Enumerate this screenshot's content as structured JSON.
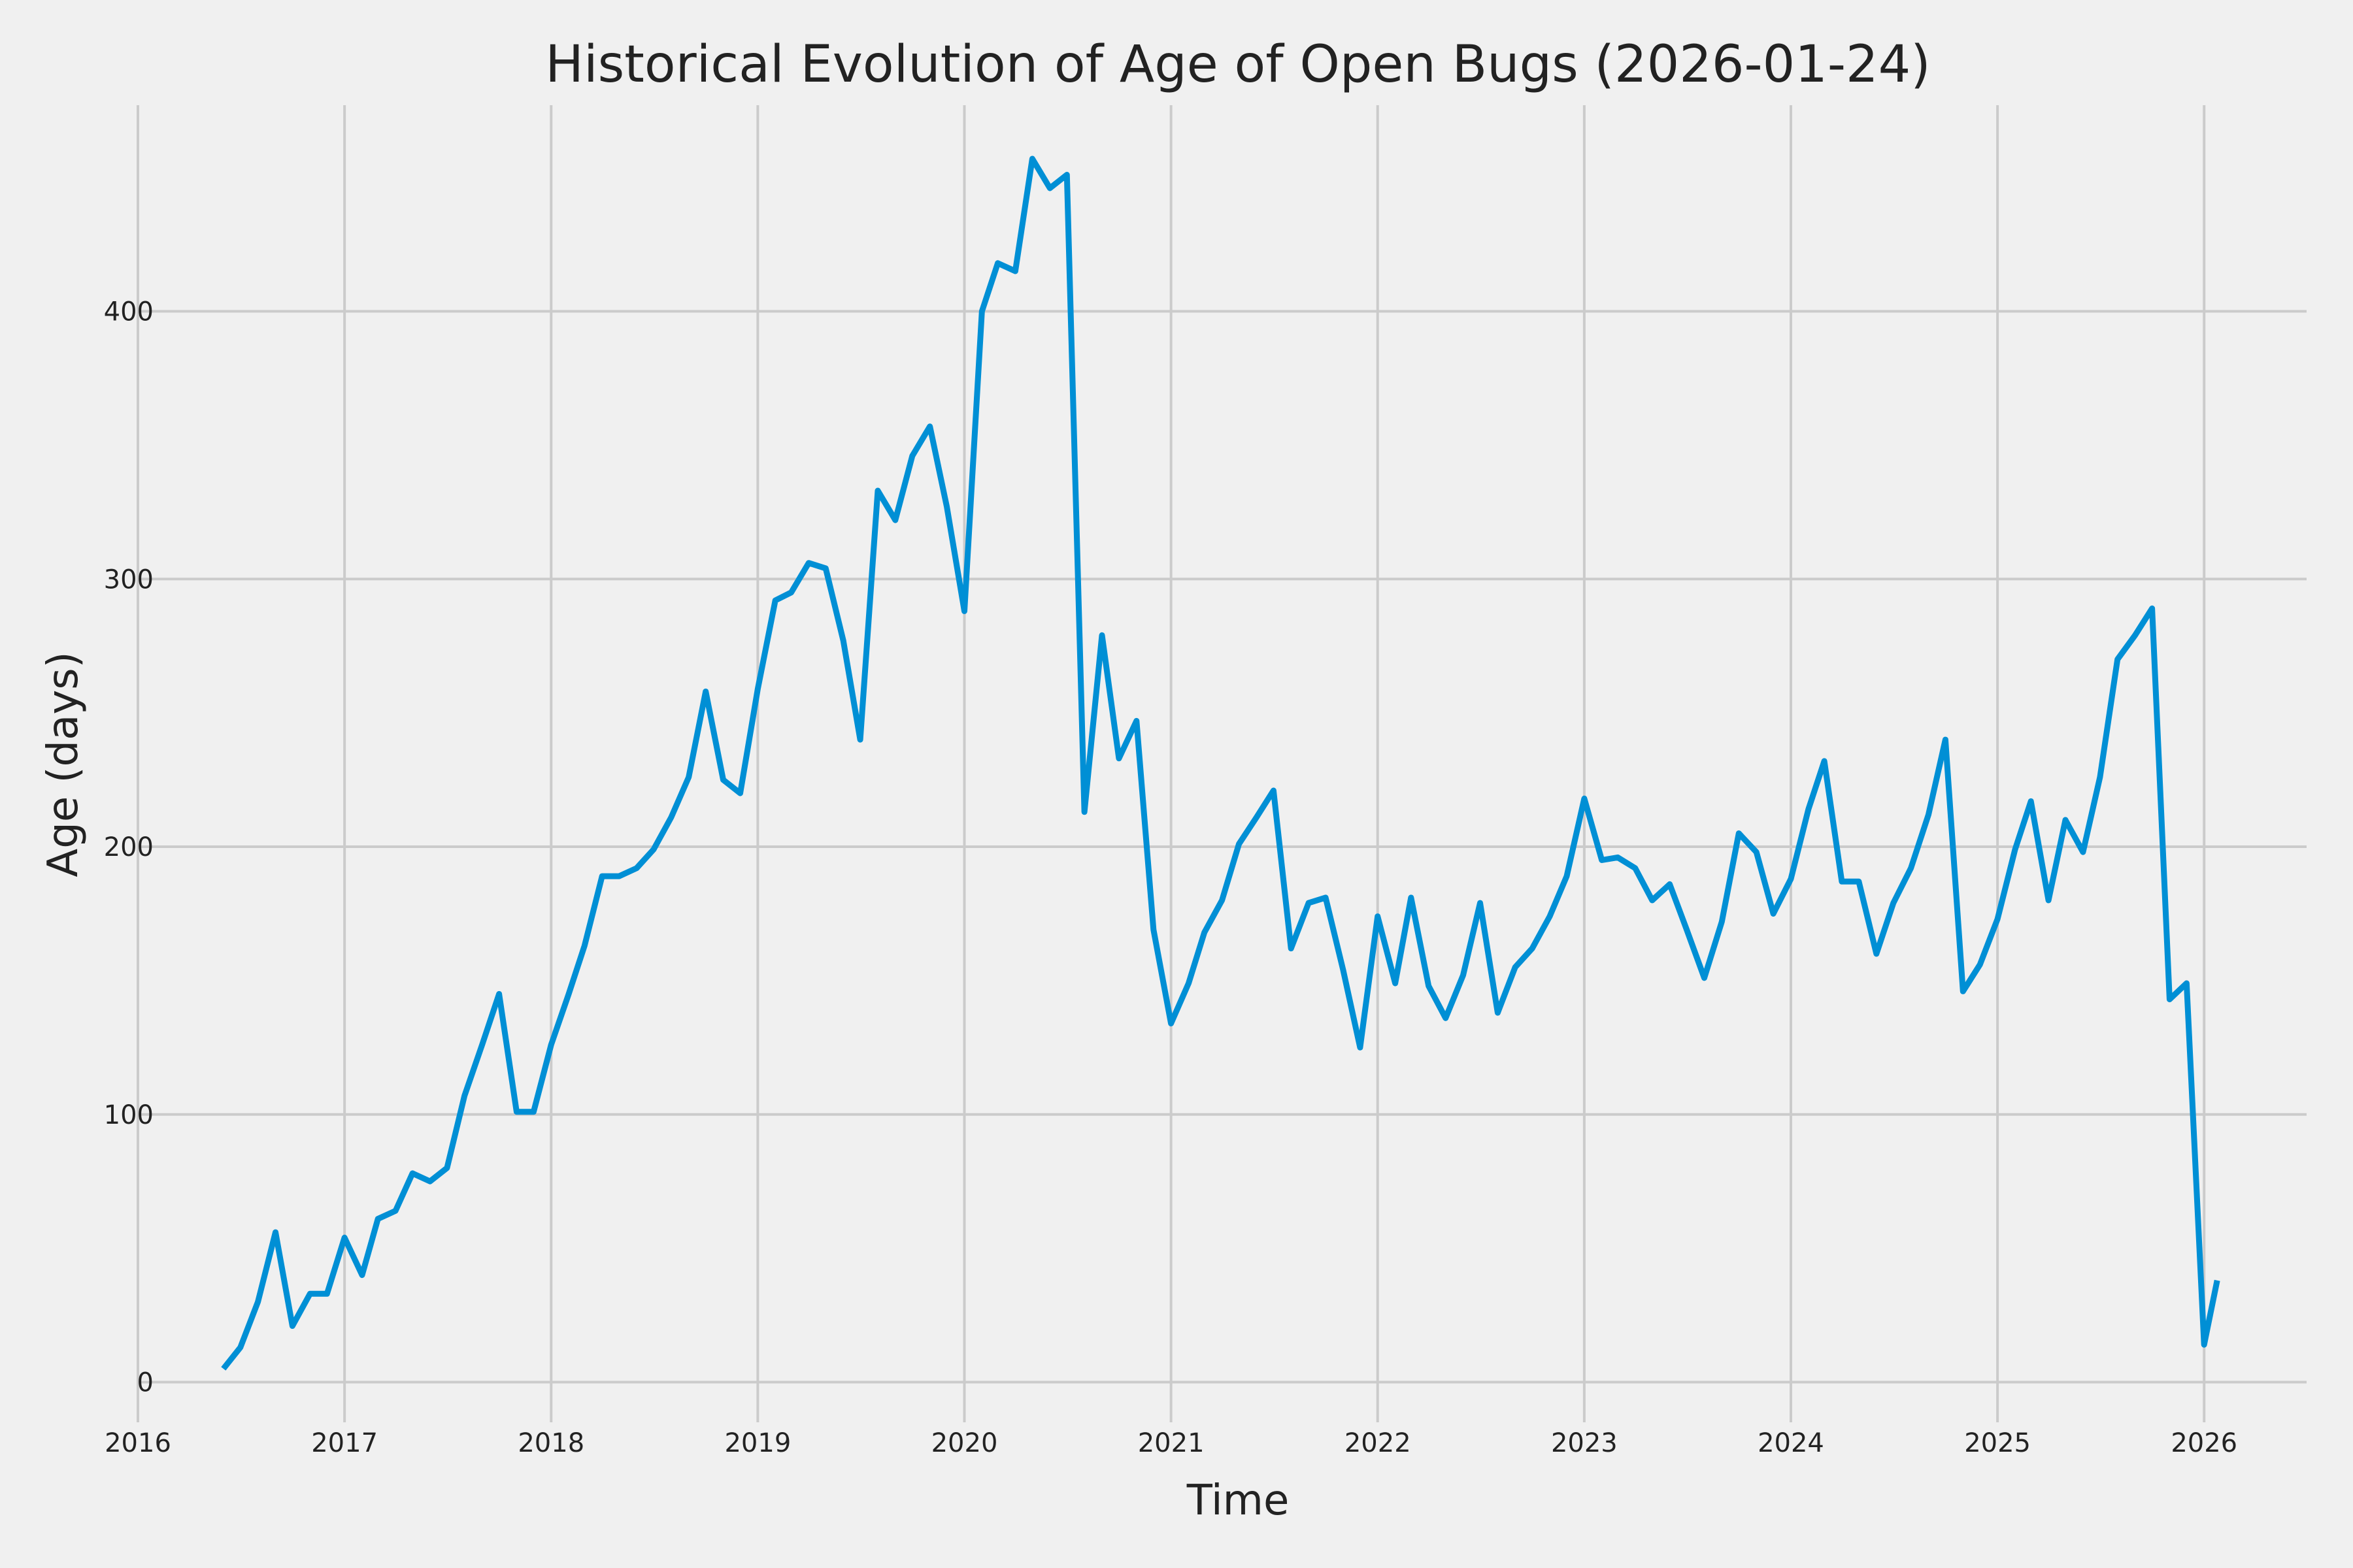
{
  "chart_data": {
    "type": "line",
    "title": "Historical Evolution of Age of Open Bugs (2026-01-24)",
    "xlabel": "Time",
    "ylabel": "Age (days)",
    "xlim": [
      "2016-01",
      "2026-07"
    ],
    "ylim": [
      -15,
      477
    ],
    "x_ticks": [
      "2016",
      "2017",
      "2018",
      "2019",
      "2020",
      "2021",
      "2022",
      "2023",
      "2024",
      "2025",
      "2026"
    ],
    "y_ticks": [
      0,
      100,
      200,
      300,
      400
    ],
    "grid": true,
    "line_color": "#008fd5",
    "background": "#f0f0f0",
    "grid_color": "#cbcbcb",
    "x": [
      "2016-06",
      "2016-07",
      "2016-08",
      "2016-09",
      "2016-10",
      "2016-11",
      "2016-12",
      "2017-01",
      "2017-02",
      "2017-03",
      "2017-04",
      "2017-05",
      "2017-06",
      "2017-07",
      "2017-08",
      "2017-09",
      "2017-10",
      "2017-11",
      "2017-12",
      "2018-01",
      "2018-02",
      "2018-03",
      "2018-04",
      "2018-05",
      "2018-06",
      "2018-07",
      "2018-08",
      "2018-09",
      "2018-10",
      "2018-11",
      "2018-12",
      "2019-01",
      "2019-02",
      "2019-03",
      "2019-04",
      "2019-05",
      "2019-06",
      "2019-07",
      "2019-08",
      "2019-09",
      "2019-10",
      "2019-11",
      "2019-12",
      "2020-01",
      "2020-02",
      "2020-03",
      "2020-04",
      "2020-05",
      "2020-06",
      "2020-07",
      "2020-08",
      "2020-09",
      "2020-10",
      "2020-11",
      "2020-12",
      "2021-01",
      "2021-02",
      "2021-03",
      "2021-04",
      "2021-05",
      "2021-06",
      "2021-07",
      "2021-08",
      "2021-09",
      "2021-10",
      "2021-11",
      "2021-12",
      "2022-01",
      "2022-02",
      "2022-03",
      "2022-04",
      "2022-05",
      "2022-06",
      "2022-07",
      "2022-08",
      "2022-09",
      "2022-10",
      "2022-11",
      "2022-12",
      "2023-01",
      "2023-02",
      "2023-03",
      "2023-04",
      "2023-05",
      "2023-06",
      "2023-07",
      "2023-08",
      "2023-09",
      "2023-10",
      "2023-11",
      "2023-12",
      "2024-01",
      "2024-02",
      "2024-03",
      "2024-04",
      "2024-05",
      "2024-06",
      "2024-07",
      "2024-08",
      "2024-09",
      "2024-10",
      "2024-11",
      "2024-12",
      "2025-01",
      "2025-02",
      "2025-03",
      "2025-04",
      "2025-05",
      "2025-06",
      "2025-07",
      "2025-08",
      "2025-09",
      "2025-10",
      "2025-11",
      "2025-12",
      "2026-01",
      "2026-01-24"
    ],
    "values": [
      5,
      13,
      30,
      56,
      21,
      33,
      33,
      54,
      40,
      61,
      64,
      78,
      75,
      80,
      107,
      126,
      145,
      101,
      101,
      126,
      145,
      163,
      189,
      189,
      192,
      199,
      211,
      226,
      258,
      225,
      220,
      259,
      292,
      295,
      306,
      304,
      277,
      240,
      333,
      322,
      346,
      357,
      327,
      288,
      400,
      418,
      415,
      457,
      446,
      451,
      213,
      279,
      233,
      247,
      169,
      134,
      149,
      168,
      180,
      201,
      211,
      221,
      162,
      179,
      181,
      154,
      125,
      174,
      149,
      181,
      148,
      136,
      152,
      179,
      138,
      155,
      162,
      174,
      189,
      218,
      195,
      196,
      192,
      180,
      186,
      169,
      151,
      172,
      205,
      198,
      175,
      188,
      214,
      232,
      187,
      187,
      160,
      179,
      192,
      212,
      240,
      146,
      156,
      173,
      199,
      217,
      180,
      210,
      198,
      226,
      270,
      279,
      289,
      143,
      149,
      14,
      38
    ]
  }
}
